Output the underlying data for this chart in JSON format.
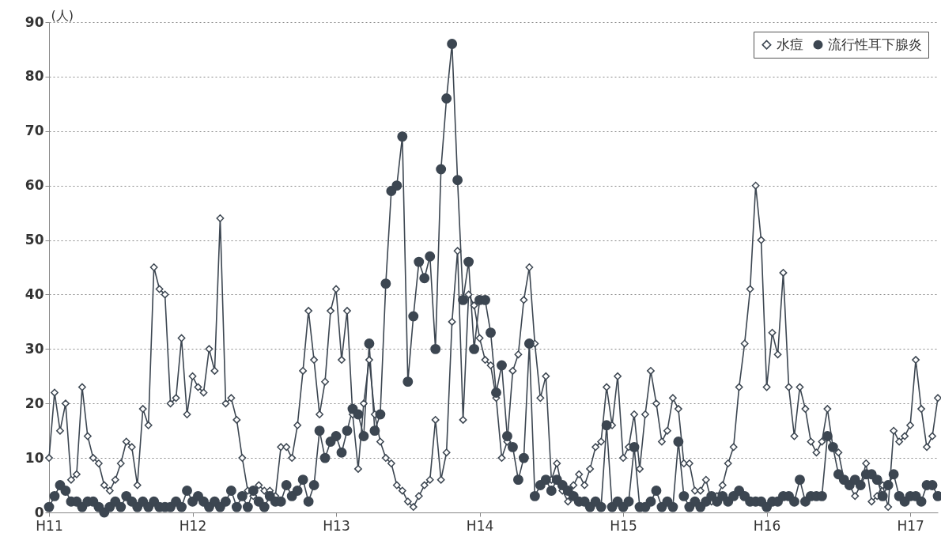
{
  "chart_data": {
    "type": "line",
    "ylabel": "(人)",
    "grid": "y",
    "legend": "top right",
    "line_style": "solid",
    "categories": [
      "H11",
      null,
      null,
      null,
      null,
      null,
      null,
      null,
      null,
      null,
      null,
      null,
      null,
      null,
      null,
      null,
      null,
      null,
      null,
      null,
      null,
      null,
      null,
      null,
      null,
      null,
      "H12",
      null,
      null,
      null,
      null,
      null,
      null,
      null,
      null,
      null,
      null,
      null,
      null,
      null,
      null,
      null,
      null,
      null,
      null,
      null,
      null,
      null,
      null,
      null,
      null,
      null,
      "H13",
      null,
      null,
      null,
      null,
      null,
      null,
      null,
      null,
      null,
      null,
      null,
      null,
      null,
      null,
      null,
      null,
      null,
      null,
      null,
      null,
      null,
      null,
      null,
      null,
      null,
      "H14",
      null,
      null,
      null,
      null,
      null,
      null,
      null,
      null,
      null,
      null,
      null,
      null,
      null,
      null,
      null,
      null,
      null,
      null,
      null,
      null,
      null,
      null,
      null,
      null,
      null,
      "H15",
      null,
      null,
      null,
      null,
      null,
      null,
      null,
      null,
      null,
      null,
      null,
      null,
      null,
      null,
      null,
      null,
      null,
      null,
      null,
      null,
      null,
      null,
      null,
      null,
      null,
      "H16",
      null,
      null,
      null,
      null,
      null,
      null,
      null,
      null,
      null,
      null,
      null,
      null,
      null,
      null,
      null,
      null,
      null,
      null,
      null,
      null,
      null,
      null,
      null,
      null,
      null,
      "H17",
      null,
      null,
      null,
      null,
      null
    ],
    "ylim": [
      0,
      90
    ],
    "yticks": [
      0,
      10,
      20,
      30,
      40,
      50,
      60,
      70,
      80,
      90
    ],
    "series": [
      {
        "name": "水痘",
        "color": "#3c4651",
        "marker": "diamond",
        "values": [
          10,
          22,
          15,
          20,
          6,
          7,
          23,
          14,
          10,
          9,
          5,
          4,
          6,
          9,
          13,
          12,
          5,
          19,
          16,
          45,
          41,
          40,
          20,
          21,
          32,
          18,
          25,
          23,
          22,
          30,
          26,
          54,
          20,
          21,
          17,
          10,
          4,
          3,
          5,
          4,
          4,
          3,
          12,
          12,
          10,
          16,
          26,
          37,
          28,
          18,
          24,
          37,
          41,
          28,
          37,
          18,
          8,
          20,
          28,
          18,
          13,
          10,
          9,
          5,
          4,
          2,
          1,
          3,
          5,
          6,
          17,
          6,
          11,
          35,
          48,
          17,
          40,
          38,
          32,
          28,
          27,
          21,
          10,
          13,
          26,
          29,
          39,
          45,
          31,
          21,
          25,
          6,
          9,
          4,
          2,
          5,
          7,
          5,
          8,
          12,
          13,
          23,
          16,
          25,
          10,
          12,
          18,
          8,
          18,
          26,
          20,
          13,
          15,
          21,
          19,
          9,
          9,
          4,
          4,
          6,
          2,
          3,
          5,
          9,
          12,
          23,
          31,
          41,
          60,
          50,
          23,
          33,
          29,
          44,
          23,
          14,
          23,
          19,
          13,
          11,
          13,
          19,
          12,
          11,
          6,
          5,
          3,
          5,
          9,
          2,
          3,
          5,
          1,
          15,
          13,
          14,
          16,
          28,
          19,
          12,
          14,
          21
        ]
      },
      {
        "name": "流行性耳下腺炎",
        "color": "#3c4651",
        "marker": "circle",
        "values": [
          1,
          3,
          5,
          4,
          2,
          2,
          1,
          2,
          2,
          1,
          0,
          1,
          2,
          1,
          3,
          2,
          1,
          2,
          1,
          2,
          1,
          1,
          1,
          2,
          1,
          4,
          2,
          3,
          2,
          1,
          2,
          1,
          2,
          4,
          1,
          3,
          1,
          4,
          2,
          1,
          3,
          2,
          2,
          5,
          3,
          4,
          6,
          2,
          5,
          15,
          10,
          13,
          14,
          11,
          15,
          19,
          18,
          14,
          31,
          15,
          18,
          42,
          59,
          60,
          69,
          24,
          36,
          46,
          43,
          47,
          30,
          63,
          76,
          86,
          61,
          39,
          46,
          30,
          39,
          39,
          33,
          22,
          27,
          14,
          12,
          6,
          10,
          31,
          3,
          5,
          6,
          4,
          6,
          5,
          4,
          3,
          2,
          2,
          1,
          2,
          1,
          16,
          1,
          2,
          1,
          2,
          12,
          1,
          1,
          2,
          4,
          1,
          2,
          1,
          13,
          3,
          1,
          2,
          1,
          2,
          3,
          2,
          3,
          2,
          3,
          4,
          3,
          2,
          2,
          2,
          1,
          2,
          2,
          3,
          3,
          2,
          6,
          2,
          3,
          3,
          3,
          14,
          12,
          7,
          6,
          5,
          6,
          5,
          7,
          7,
          6,
          3,
          5,
          7,
          3,
          2,
          3,
          3,
          2,
          5,
          5,
          3
        ]
      }
    ]
  }
}
